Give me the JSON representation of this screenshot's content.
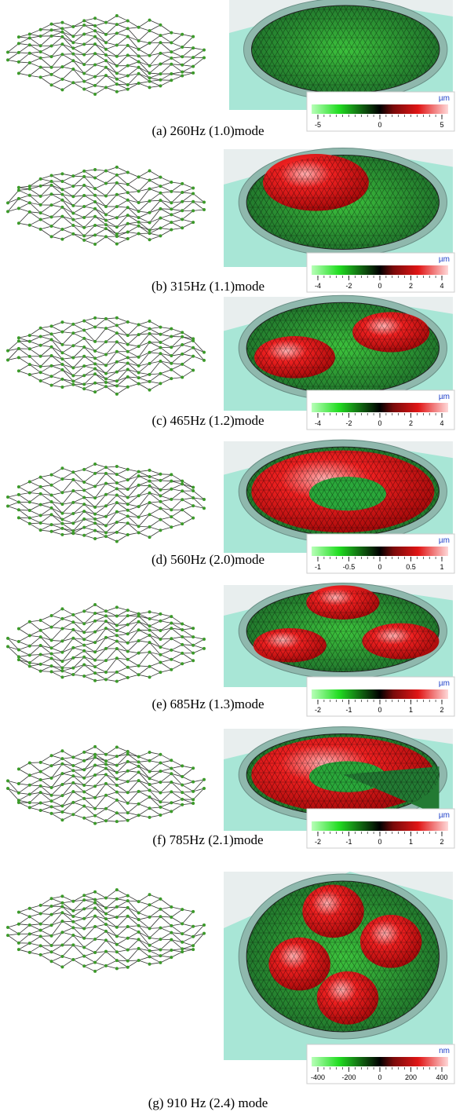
{
  "panels": [
    {
      "caption": "(a) 260Hz (1.0)mode",
      "unit": "µm",
      "ticks": [
        -5,
        0,
        5
      ]
    },
    {
      "caption": "(b) 315Hz (1.1)mode",
      "unit": "µm",
      "ticks": [
        -4,
        -2,
        0,
        2,
        4
      ]
    },
    {
      "caption": "(c) 465Hz (1.2)mode",
      "unit": "µm",
      "ticks": [
        -4,
        -2,
        0,
        2,
        4
      ]
    },
    {
      "caption": "(d) 560Hz (2.0)mode",
      "unit": "µm",
      "ticks": [
        -1,
        -0.5,
        0,
        0.5,
        1
      ]
    },
    {
      "caption": "(e) 685Hz (1.3)mode",
      "unit": "µm",
      "ticks": [
        -2,
        -1,
        0,
        1,
        2
      ]
    },
    {
      "caption": "(f) 785Hz (2.1)mode",
      "unit": "µm",
      "ticks": [
        -2,
        -1,
        0,
        1,
        2
      ]
    },
    {
      "caption": "(g) 910 Hz (2.4) mode",
      "unit": "nm",
      "ticks": [
        -400,
        -200,
        0,
        200,
        400
      ]
    }
  ]
}
